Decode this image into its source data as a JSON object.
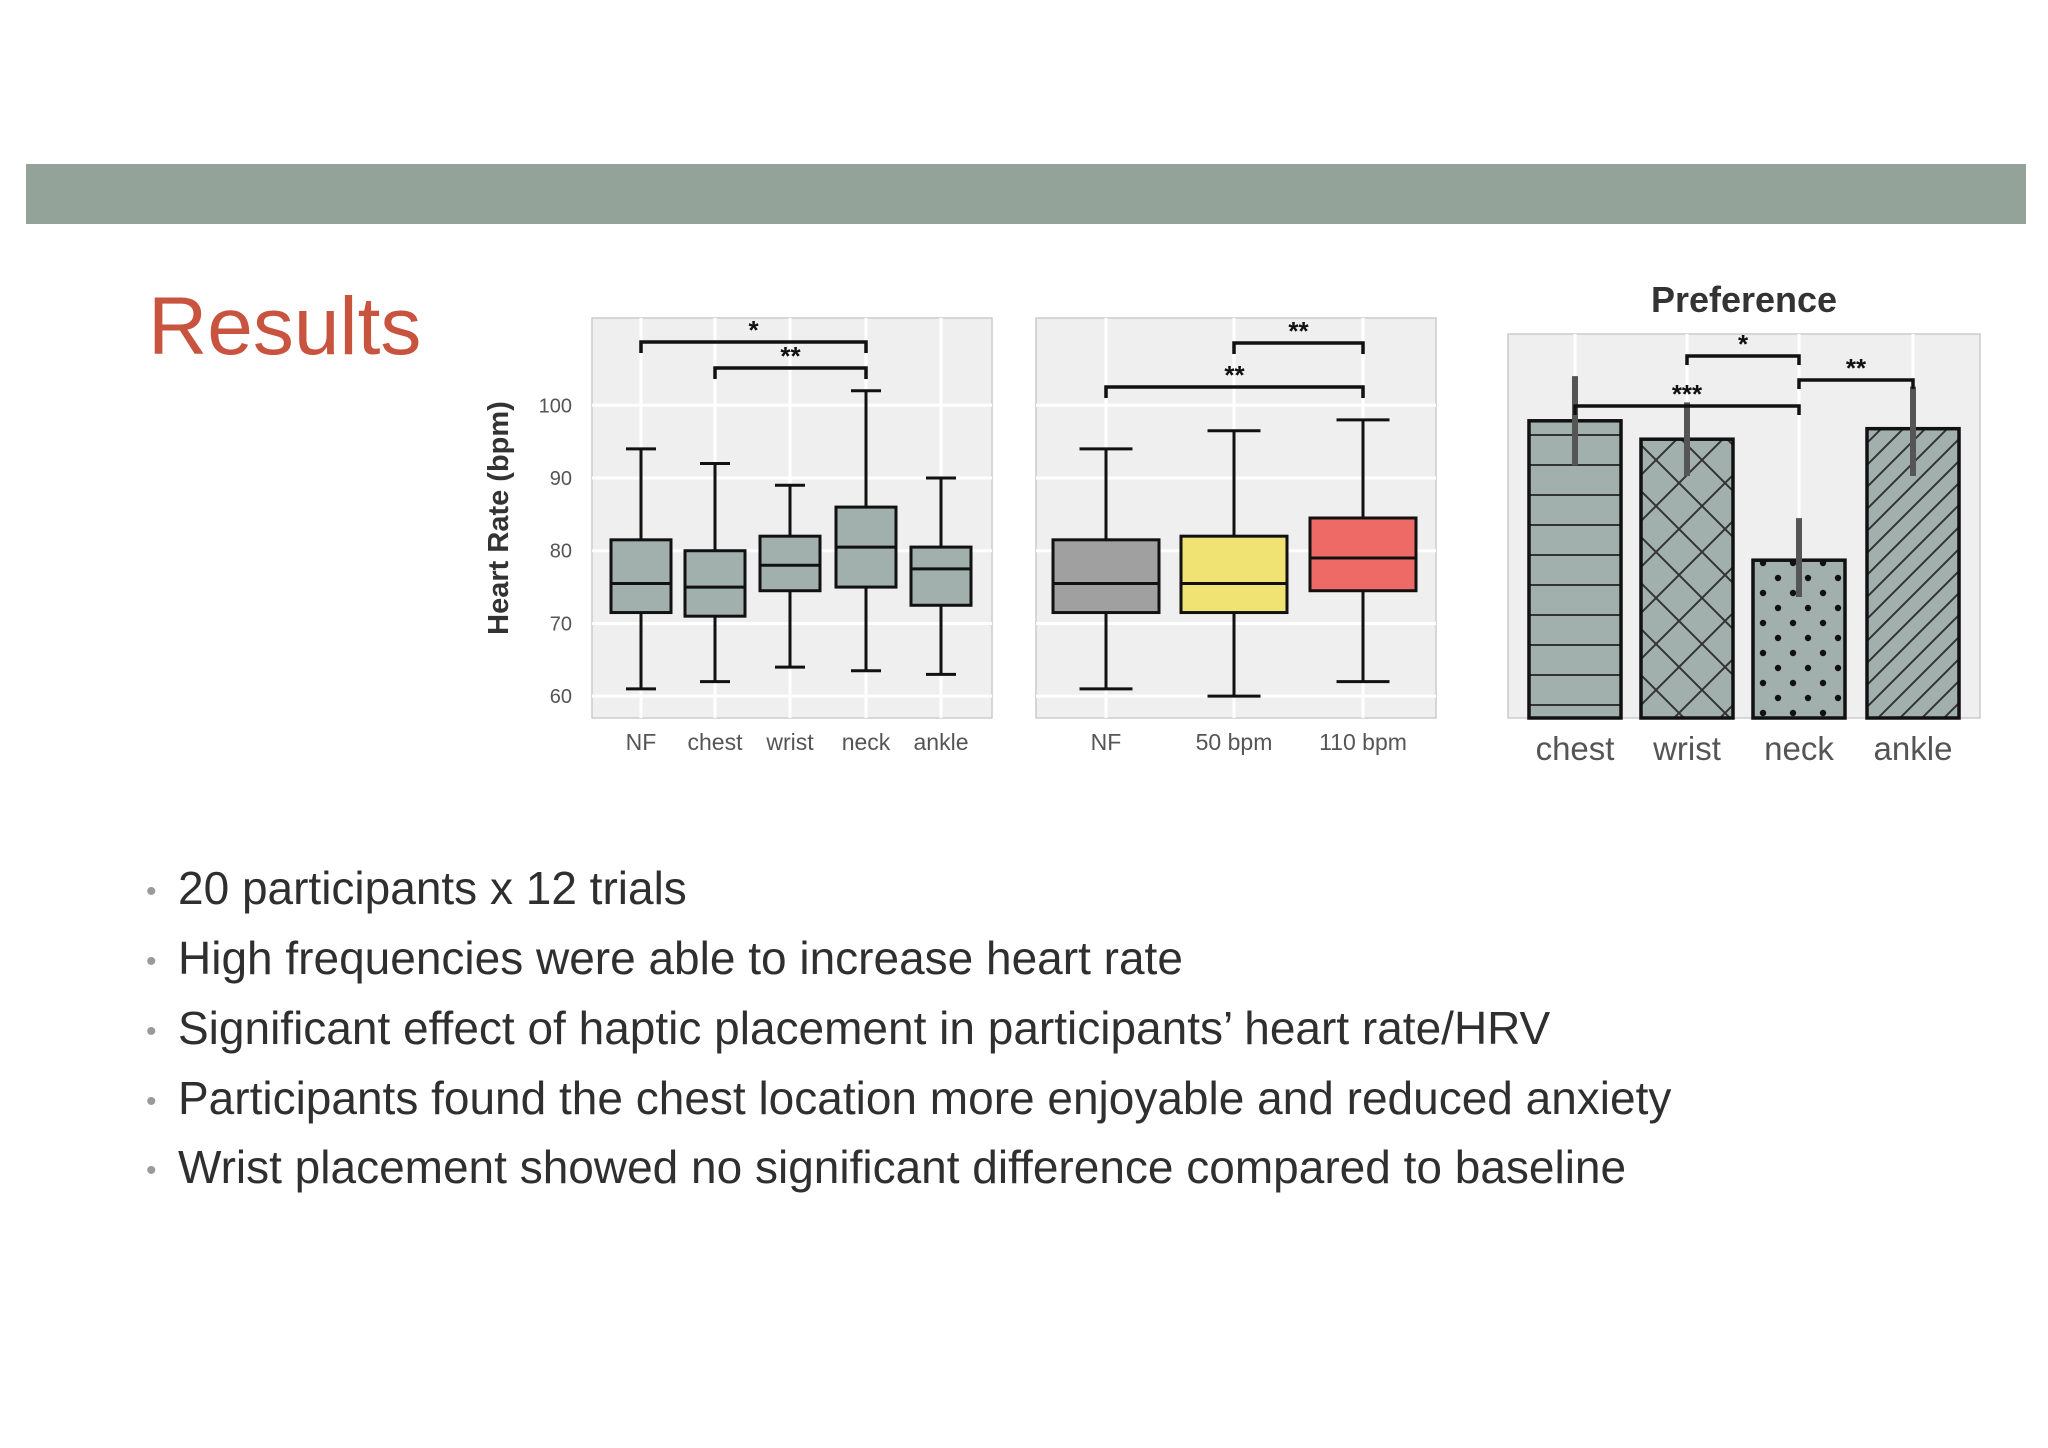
{
  "slide": {
    "title": "Results",
    "band_color": "#93a39a",
    "title_color": "#c8533e",
    "text_color": "#2f2f2f",
    "bullet_glyph": "•",
    "bullets": [
      "20 participants x 12 trials",
      "High frequencies were able to increase heart rate",
      "Significant effect of haptic placement in participants’ heart rate/HRV",
      "Participants found the chest location more enjoyable and reduced anxiety",
      "Wrist placement showed no significant difference compared to baseline"
    ]
  },
  "chart_data": [
    {
      "type": "box",
      "title": "",
      "xlabel": "",
      "ylabel": "Heart Rate (bpm)",
      "ylim": [
        57,
        112
      ],
      "yticks": [
        60,
        70,
        80,
        90,
        100
      ],
      "grid": true,
      "categories": [
        "NF",
        "chest",
        "wrist",
        "neck",
        "ankle"
      ],
      "boxes": [
        {
          "min": 61,
          "q1": 71.5,
          "median": 75.5,
          "q3": 81.5,
          "max": 94,
          "color": "#a2b0ad"
        },
        {
          "min": 62,
          "q1": 71,
          "median": 75,
          "q3": 80,
          "max": 92,
          "color": "#a2b0ad"
        },
        {
          "min": 64,
          "q1": 74.5,
          "median": 78,
          "q3": 82,
          "max": 89,
          "color": "#a2b0ad"
        },
        {
          "min": 63.5,
          "q1": 75,
          "median": 80.5,
          "q3": 86,
          "max": 102,
          "color": "#a2b0ad"
        },
        {
          "min": 63,
          "q1": 72.5,
          "median": 77.5,
          "q3": 80.5,
          "max": 90,
          "color": "#a2b0ad"
        }
      ],
      "significance": [
        {
          "from": "NF",
          "to": "neck",
          "label": "*"
        },
        {
          "from": "chest",
          "to": "neck",
          "label": "**"
        }
      ]
    },
    {
      "type": "box",
      "title": "",
      "xlabel": "",
      "ylabel": "",
      "ylim": [
        57,
        112
      ],
      "yticks": [
        60,
        70,
        80,
        90,
        100
      ],
      "grid": true,
      "categories": [
        "NF",
        "50 bpm",
        "110 bpm"
      ],
      "boxes": [
        {
          "min": 61,
          "q1": 71.5,
          "median": 75.5,
          "q3": 81.5,
          "max": 94,
          "color": "#a0a0a0"
        },
        {
          "min": 60,
          "q1": 71.5,
          "median": 75.5,
          "q3": 82,
          "max": 96.5,
          "color": "#f0e273"
        },
        {
          "min": 62,
          "q1": 74.5,
          "median": 79,
          "q3": 84.5,
          "max": 98,
          "color": "#ee6a67"
        }
      ],
      "significance": [
        {
          "from": "50 bpm",
          "to": "110 bpm",
          "label": "**"
        },
        {
          "from": "NF",
          "to": "110 bpm",
          "label": "**"
        }
      ]
    },
    {
      "type": "bar",
      "title": "Preference",
      "xlabel": "",
      "ylabel": "",
      "ylim": [
        0,
        7.3
      ],
      "grid": true,
      "categories": [
        "chest",
        "wrist",
        "neck",
        "ankle"
      ],
      "values": [
        5.65,
        5.3,
        3.0,
        5.5
      ],
      "error": [
        [
          4.8,
          6.5
        ],
        [
          4.6,
          6.0
        ],
        [
          2.3,
          3.8
        ],
        [
          4.6,
          6.3
        ]
      ],
      "colors": [
        "#a2b0ad",
        "#a2b0ad",
        "#a2b0ad",
        "#a2b0ad"
      ],
      "patterns": [
        "horizontal-lines",
        "crosshatch",
        "dots",
        "diagonal-lines"
      ],
      "significance": [
        {
          "from": "wrist",
          "to": "neck",
          "label": "*"
        },
        {
          "from": "neck",
          "to": "ankle",
          "label": "**"
        },
        {
          "from": "chest",
          "to": "neck",
          "label": "***"
        }
      ]
    }
  ]
}
